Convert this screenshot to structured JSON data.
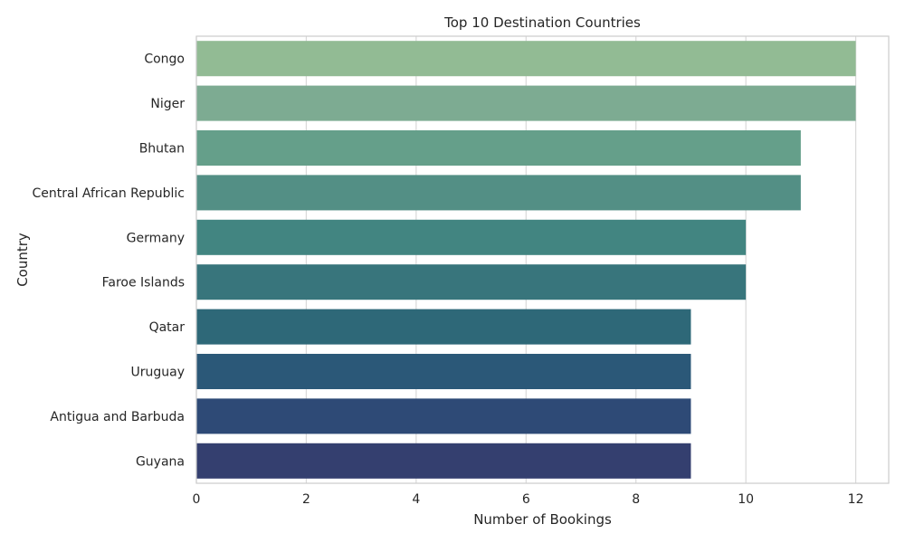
{
  "chart_data": {
    "type": "bar",
    "orientation": "horizontal",
    "title": "Top 10 Destination Countries",
    "xlabel": "Number of Bookings",
    "ylabel": "Country",
    "categories": [
      "Congo",
      "Niger",
      "Bhutan",
      "Central African Republic",
      "Germany",
      "Faroe Islands",
      "Qatar",
      "Uruguay",
      "Antigua and Barbuda",
      "Guyana"
    ],
    "values": [
      12,
      12,
      11,
      11,
      10,
      10,
      9,
      9,
      9,
      9
    ],
    "xlim": [
      0,
      12.6
    ],
    "xticks": [
      "0",
      "2",
      "4",
      "6",
      "8",
      "10",
      "12"
    ],
    "grid": "vertical",
    "colors": [
      "#92bb94",
      "#7dab92",
      "#659f8a",
      "#538f85",
      "#428581",
      "#38757c",
      "#2e6878",
      "#2b5878",
      "#2e4a76",
      "#343f6f"
    ]
  }
}
